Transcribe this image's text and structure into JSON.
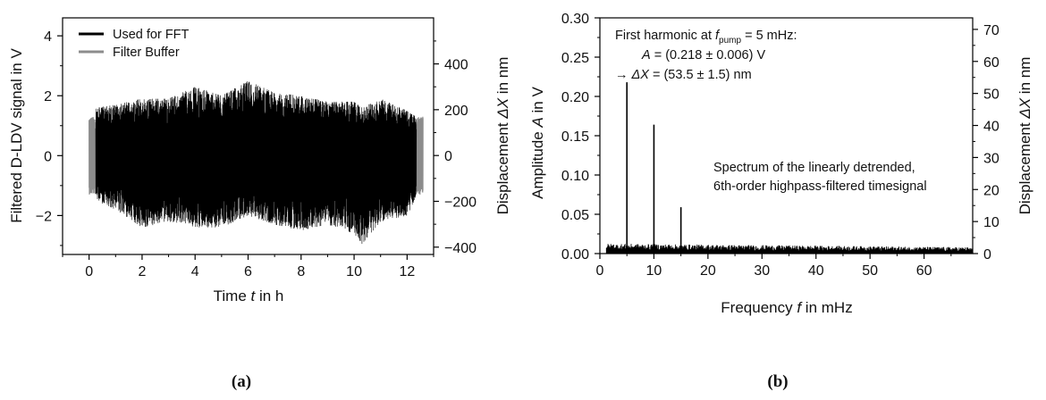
{
  "chart_data": [
    {
      "type": "line",
      "panel_caption": "(a)",
      "xlabel_parts": [
        "Time ",
        "t",
        " in h"
      ],
      "ylabel": "Filtered D-LDV signal in V",
      "y2label_parts": [
        "Displacement ",
        "ΔX",
        " in nm"
      ],
      "xlim": [
        -1,
        13
      ],
      "ylim": [
        -3.3,
        4.6
      ],
      "y2lim": [
        -432,
        601
      ],
      "xticks": [
        0,
        2,
        4,
        6,
        8,
        10,
        12
      ],
      "yticks": [
        -2,
        0,
        2,
        4
      ],
      "y2ticks": [
        -400,
        -200,
        0,
        200,
        400
      ],
      "grid": false,
      "legend_position": "top-left",
      "series": [
        {
          "name": "Used for FFT",
          "color": "#000000",
          "x_range": [
            0.25,
            12.35
          ],
          "envelope_x": [
            0.25,
            1,
            2,
            3,
            4,
            5,
            6,
            7,
            8,
            9,
            10,
            10.3,
            11,
            12,
            12.35
          ],
          "envelope_upper": [
            1.6,
            1.7,
            1.9,
            1.9,
            2.3,
            2.0,
            2.5,
            2.1,
            2.0,
            1.8,
            1.8,
            1.6,
            1.9,
            1.5,
            1.3
          ],
          "envelope_lower": [
            -1.5,
            -1.8,
            -2.4,
            -2.2,
            -2.4,
            -2.4,
            -2.0,
            -2.3,
            -2.5,
            -2.3,
            -2.6,
            -2.95,
            -2.2,
            -2.0,
            -1.4
          ]
        },
        {
          "name": "Filter Buffer",
          "color": "#8c8c8c",
          "segments": [
            [
              0.0,
              0.25
            ],
            [
              12.35,
              12.6
            ]
          ],
          "amplitude": 1.3
        }
      ]
    },
    {
      "type": "bar",
      "panel_caption": "(b)",
      "xlabel_parts": [
        "Frequency ",
        "f",
        " in mHz"
      ],
      "ylabel_parts": [
        "Amplitude ",
        "A",
        " in V"
      ],
      "y2label_parts": [
        "Displacement ",
        "ΔX",
        " in nm"
      ],
      "xlim": [
        0,
        69
      ],
      "ylim": [
        0,
        0.3
      ],
      "y2lim": [
        0,
        73.6
      ],
      "xticks": [
        0,
        10,
        20,
        30,
        40,
        50,
        60
      ],
      "yticks": [
        0.0,
        0.05,
        0.1,
        0.15,
        0.2,
        0.25,
        0.3
      ],
      "ytick_labels": [
        "0.00",
        "0.05",
        "0.10",
        "0.15",
        "0.20",
        "0.25",
        "0.30"
      ],
      "y2ticks": [
        0,
        10,
        20,
        30,
        40,
        50,
        60,
        70
      ],
      "grid": false,
      "peaks": [
        {
          "x": 5,
          "y": 0.218
        },
        {
          "x": 10,
          "y": 0.164
        },
        {
          "x": 15,
          "y": 0.059
        }
      ],
      "noise_floor": {
        "x_range": [
          1.2,
          69
        ],
        "level_start": 0.011,
        "level_end": 0.007
      },
      "annotation": {
        "line1_parts": [
          "First harmonic at ",
          "f",
          "pump",
          " = 5 mHz:"
        ],
        "line2_parts": [
          "A",
          " = (0.218 ± 0.006) V"
        ],
        "line3_parts": [
          "→ ",
          "ΔX",
          " = (53.5 ± 1.5) nm"
        ]
      },
      "description_lines": [
        "Spectrum of the linearly detrended,",
        "6th-order highpass-filtered timesignal"
      ]
    }
  ]
}
